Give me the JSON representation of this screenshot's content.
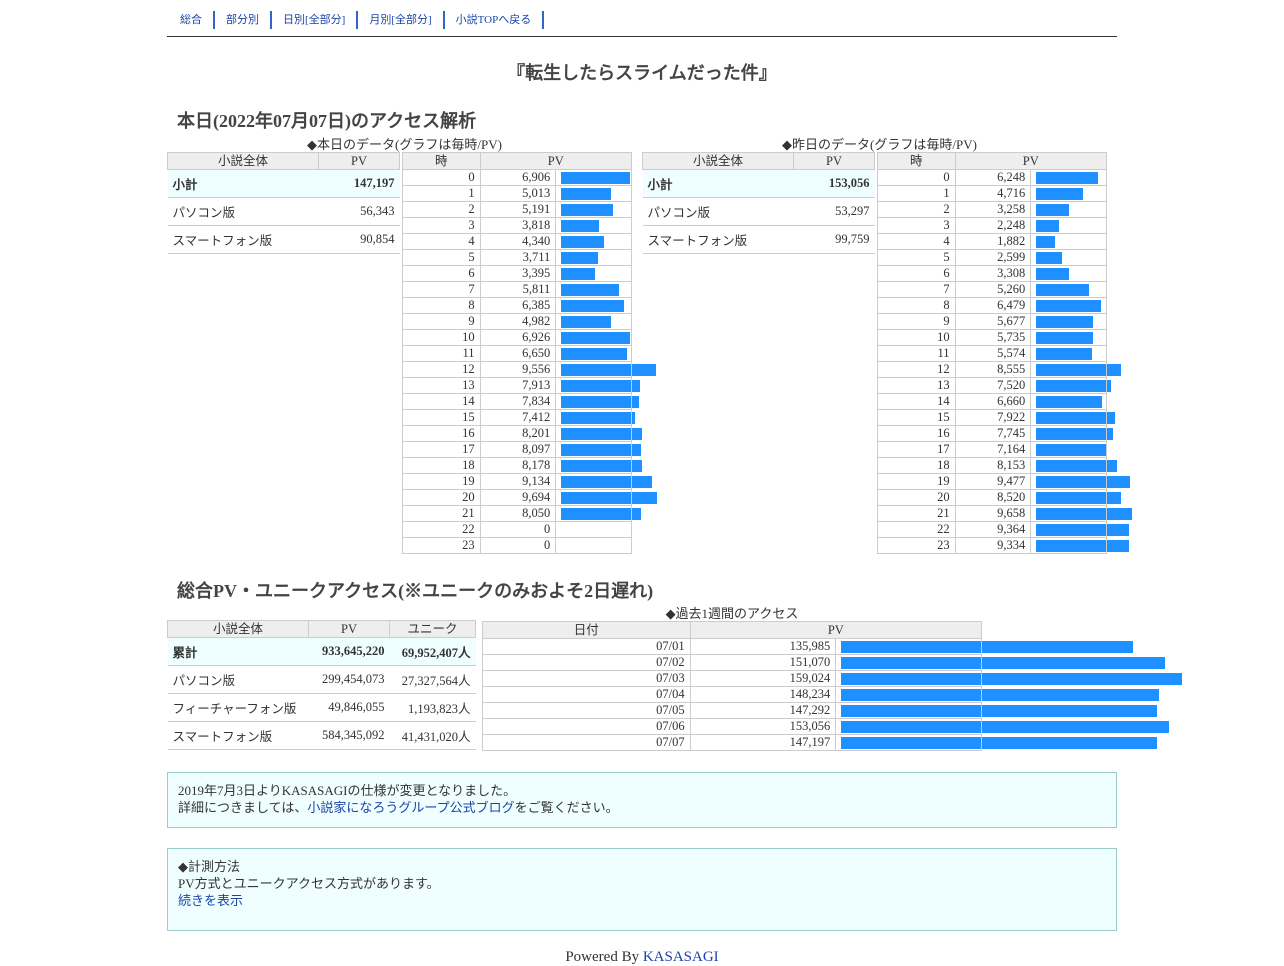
{
  "nav": [
    "総合",
    "部分別",
    "日別[全部分]",
    "月別[全部分]",
    "小説TOPへ戻る"
  ],
  "title": "『転生したらスライムだった件』",
  "today": {
    "heading": "本日(2022年07月07日)のアクセス解析",
    "panels": [
      {
        "caption": "◆本日のデータ(グラフは毎時/PV)",
        "summary": {
          "headers": [
            "小説全体",
            "PV"
          ],
          "rows": [
            [
              "小計",
              "147,197"
            ],
            [
              "パソコン版",
              "56,343"
            ],
            [
              "スマートフォン版",
              "90,854"
            ]
          ]
        },
        "hourly": {
          "headers": [
            "時",
            "PV"
          ],
          "rows": [
            [
              0,
              {
                "value": 6906,
                "label": "6,906"
              }
            ],
            [
              1,
              {
                "value": 5013,
                "label": "5,013"
              }
            ],
            [
              2,
              {
                "value": 5191,
                "label": "5,191"
              }
            ],
            [
              3,
              {
                "value": 3818,
                "label": "3,818"
              }
            ],
            [
              4,
              {
                "value": 4340,
                "label": "4,340"
              }
            ],
            [
              5,
              {
                "value": 3711,
                "label": "3,711"
              }
            ],
            [
              6,
              {
                "value": 3395,
                "label": "3,395"
              }
            ],
            [
              7,
              {
                "value": 5811,
                "label": "5,811"
              }
            ],
            [
              8,
              {
                "value": 6385,
                "label": "6,385"
              }
            ],
            [
              9,
              {
                "value": 4982,
                "label": "4,982"
              }
            ],
            [
              10,
              {
                "value": 6926,
                "label": "6,926"
              }
            ],
            [
              11,
              {
                "value": 6650,
                "label": "6,650"
              }
            ],
            [
              12,
              {
                "value": 9556,
                "label": "9,556"
              }
            ],
            [
              13,
              {
                "value": 7913,
                "label": "7,913"
              }
            ],
            [
              14,
              {
                "value": 7834,
                "label": "7,834"
              }
            ],
            [
              15,
              {
                "value": 7412,
                "label": "7,412"
              }
            ],
            [
              16,
              {
                "value": 8201,
                "label": "8,201"
              }
            ],
            [
              17,
              {
                "value": 8097,
                "label": "8,097"
              }
            ],
            [
              18,
              {
                "value": 8178,
                "label": "8,178"
              }
            ],
            [
              19,
              {
                "value": 9134,
                "label": "9,134"
              }
            ],
            [
              20,
              {
                "value": 9694,
                "label": "9,694"
              }
            ],
            [
              21,
              {
                "value": 8050,
                "label": "8,050"
              }
            ],
            [
              22,
              {
                "value": 0,
                "label": "0"
              }
            ],
            [
              23,
              {
                "value": 0,
                "label": "0"
              }
            ]
          ]
        }
      },
      {
        "caption": "◆昨日のデータ(グラフは毎時/PV)",
        "summary": {
          "headers": [
            "小説全体",
            "PV"
          ],
          "rows": [
            [
              "小計",
              "153,056"
            ],
            [
              "パソコン版",
              "53,297"
            ],
            [
              "スマートフォン版",
              "99,759"
            ]
          ]
        },
        "hourly": {
          "headers": [
            "時",
            "PV"
          ],
          "rows": [
            [
              0,
              {
                "value": 6248,
                "label": "6,248"
              }
            ],
            [
              1,
              {
                "value": 4716,
                "label": "4,716"
              }
            ],
            [
              2,
              {
                "value": 3258,
                "label": "3,258"
              }
            ],
            [
              3,
              {
                "value": 2248,
                "label": "2,248"
              }
            ],
            [
              4,
              {
                "value": 1882,
                "label": "1,882"
              }
            ],
            [
              5,
              {
                "value": 2599,
                "label": "2,599"
              }
            ],
            [
              6,
              {
                "value": 3308,
                "label": "3,308"
              }
            ],
            [
              7,
              {
                "value": 5260,
                "label": "5,260"
              }
            ],
            [
              8,
              {
                "value": 6479,
                "label": "6,479"
              }
            ],
            [
              9,
              {
                "value": 5677,
                "label": "5,677"
              }
            ],
            [
              10,
              {
                "value": 5735,
                "label": "5,735"
              }
            ],
            [
              11,
              {
                "value": 5574,
                "label": "5,574"
              }
            ],
            [
              12,
              {
                "value": 8555,
                "label": "8,555"
              }
            ],
            [
              13,
              {
                "value": 7520,
                "label": "7,520"
              }
            ],
            [
              14,
              {
                "value": 6660,
                "label": "6,660"
              }
            ],
            [
              15,
              {
                "value": 7922,
                "label": "7,922"
              }
            ],
            [
              16,
              {
                "value": 7745,
                "label": "7,745"
              }
            ],
            [
              17,
              {
                "value": 7164,
                "label": "7,164"
              }
            ],
            [
              18,
              {
                "value": 8153,
                "label": "8,153"
              }
            ],
            [
              19,
              {
                "value": 9477,
                "label": "9,477"
              }
            ],
            [
              20,
              {
                "value": 8520,
                "label": "8,520"
              }
            ],
            [
              21,
              {
                "value": 9658,
                "label": "9,658"
              }
            ],
            [
              22,
              {
                "value": 9364,
                "label": "9,364"
              }
            ],
            [
              23,
              {
                "value": 9334,
                "label": "9,334"
              }
            ]
          ]
        }
      }
    ]
  },
  "total": {
    "heading": "総合PV・ユニークアクセス(※ユニークのみおよそ2日遅れ)",
    "summary": {
      "headers": [
        "小説全体",
        "PV",
        "ユニーク"
      ],
      "rows": [
        [
          "累計",
          "933,645,220",
          "69,952,407人"
        ],
        [
          "パソコン版",
          "299,454,073",
          "27,327,564人"
        ],
        [
          "フィーチャーフォン版",
          "49,846,055",
          "1,193,823人"
        ],
        [
          "スマートフォン版",
          "584,345,092",
          "41,431,020人"
        ]
      ]
    },
    "weekly": {
      "caption": "◆過去1週間のアクセス",
      "headers": [
        "日付",
        "PV"
      ],
      "rows": [
        [
          "07/01",
          {
            "value": 135985,
            "label": "135,985"
          }
        ],
        [
          "07/02",
          {
            "value": 151070,
            "label": "151,070"
          }
        ],
        [
          "07/03",
          {
            "value": 159024,
            "label": "159,024"
          }
        ],
        [
          "07/04",
          {
            "value": 148234,
            "label": "148,234"
          }
        ],
        [
          "07/05",
          {
            "value": 147292,
            "label": "147,292"
          }
        ],
        [
          "07/06",
          {
            "value": 153056,
            "label": "153,056"
          }
        ],
        [
          "07/07",
          {
            "value": 147197,
            "label": "147,197"
          }
        ]
      ]
    }
  },
  "notice": {
    "line1": "2019年7月3日よりKASASAGIの仕様が変更となりました。",
    "before": "詳細につきましては、",
    "link": "小説家になろうグループ公式ブログ",
    "after": "をご覧ください。"
  },
  "method": {
    "title": "◆計測方法",
    "text": "PV方式とユニークアクセス方式があります。",
    "link": "続きを表示"
  },
  "footer": {
    "text": "Powered By",
    "link": "KASASAGI"
  }
}
